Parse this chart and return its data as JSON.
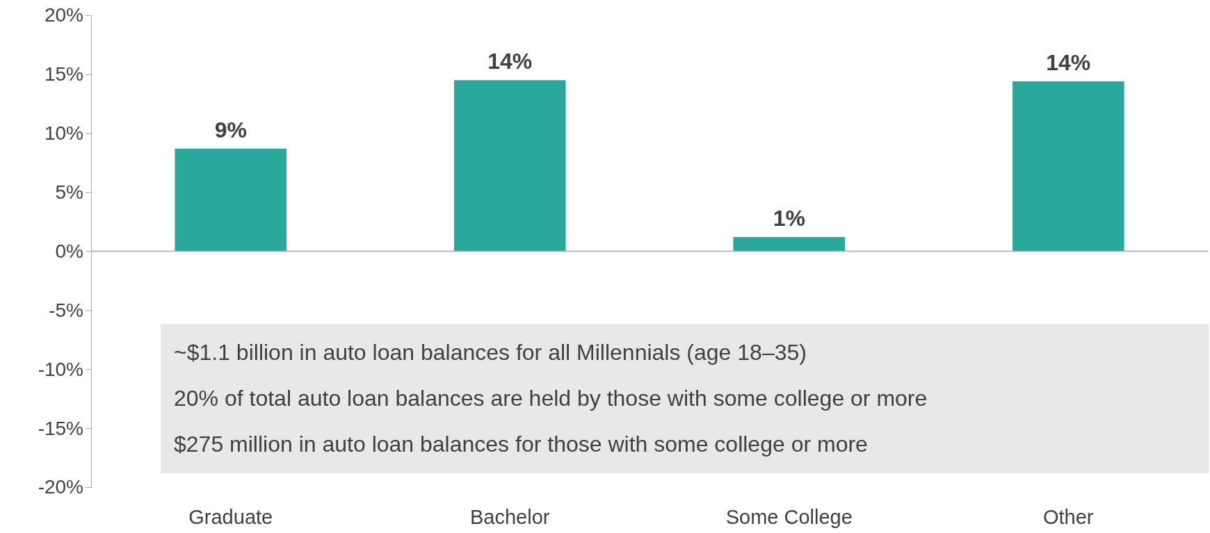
{
  "chart_data": {
    "type": "bar",
    "categories": [
      "Graduate",
      "Bachelor",
      "Some College",
      "Other"
    ],
    "values": [
      8.7,
      14.5,
      1.2,
      14.4
    ],
    "value_labels": [
      "9%",
      "14%",
      "1%",
      "14%"
    ],
    "color": "#2aa89b",
    "ylim": [
      -20,
      20
    ],
    "yticks": [
      {
        "value": -20,
        "label": "-20%"
      },
      {
        "value": -15,
        "label": "-15%"
      },
      {
        "value": -10,
        "label": "-10%"
      },
      {
        "value": -5,
        "label": "-5%"
      },
      {
        "value": 0,
        "label": "0%"
      },
      {
        "value": 5,
        "label": "5%"
      },
      {
        "value": 10,
        "label": "10%"
      },
      {
        "value": 15,
        "label": "15%"
      },
      {
        "value": 20,
        "label": "20%"
      }
    ],
    "annotations": [
      "~$1.1 billion in auto loan balances for all Millennials (age 18–35)",
      "20% of total auto loan balances are held by those with some college or more",
      "$275 million in auto loan balances for those with some college or more"
    ]
  }
}
